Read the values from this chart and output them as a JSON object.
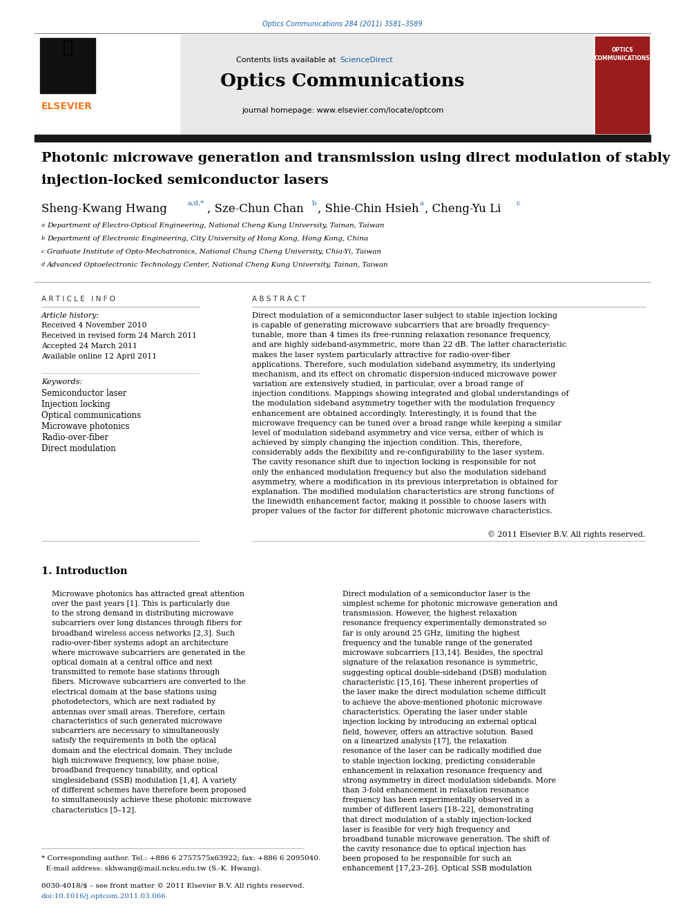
{
  "page_width": 9.92,
  "page_height": 13.23,
  "bg_color": "#ffffff",
  "journal_ref": "Optics Communications 284 (2011) 3581–3589",
  "journal_ref_color": "#1a5fa8",
  "journal_name": "Optics Communications",
  "contents_text": "Contents lists available at ",
  "sciencedirect_text": "ScienceDirect",
  "sciencedirect_color": "#1a5fa8",
  "journal_homepage": "journal homepage: www.elsevier.com/locate/optcom",
  "header_bg": "#e8e8e8",
  "title_bar_color": "#1a1a1a",
  "paper_title_line1": "Photonic microwave generation and transmission using direct modulation of stably",
  "paper_title_line2": "injection-locked semiconductor lasers",
  "article_info_header": "A R T I C L E   I N F O",
  "article_history_label": "Article history:",
  "article_history": [
    "Received 4 November 2010",
    "Received in revised form 24 March 2011",
    "Accepted 24 March 2011",
    "Available online 12 April 2011"
  ],
  "keywords_label": "Keywords:",
  "keywords": [
    "Semiconductor laser",
    "Injection locking",
    "Optical communications",
    "Microwave photonics",
    "Radio-over-fiber",
    "Direct modulation"
  ],
  "abstract_header": "A B S T R A C T",
  "abstract_text": "Direct modulation of a semiconductor laser subject to stable injection locking is capable of generating microwave subcarriers that are broadly frequency-tunable, more than 4 times its free-running relaxation resonance frequency, and are highly sideband-asymmetric, more than 22 dB. The latter characteristic makes the laser system particularly attractive for radio-over-fiber applications. Therefore, such modulation sideband asymmetry, its underlying mechanism, and its effect on chromatic dispersion-induced microwave power variation are extensively studied, in particular, over a broad range of injection conditions. Mappings showing integrated and global understandings of the modulation sideband asymmetry together with the modulation frequency enhancement are obtained accordingly. Interestingly, it is found that the microwave frequency can be tuned over a broad range while keeping a similar level of modulation sideband asymmetry and vice versa, either of which is achieved by simply changing the injection condition. This, therefore, considerably adds the flexibility and re-configurability to the laser system. The cavity resonance shift due to injection locking is responsible for not only the enhanced modulation frequency but also the modulation sideband asymmetry, where a modification in its previous interpretation is obtained for explanation. The modified modulation characteristics are strong functions of the linewidth enhancement factor, making it possible to choose lasers with proper values of the factor for different photonic microwave characteristics.",
  "copyright": "© 2011 Elsevier B.V. All rights reserved.",
  "section1_title": "1. Introduction",
  "intro_left": "Microwave photonics has attracted great attention over the past years [1]. This is particularly due to the strong demand in distributing microwave subcarriers over long distances through fibers for broadband wireless access networks [2,3]. Such radio-over-fiber systems adopt an architecture where microwave subcarriers are generated in the optical domain at a central office and next transmitted to remote base stations through fibers. Microwave subcarriers are converted to the electrical domain at the base stations using photodetectors, which are next radiated by antennas over small areas. Therefore, certain characteristics of such generated microwave subcarriers are necessary to simultaneously satisfy the requirements in both the optical domain and the electrical domain. They include high microwave frequency, low phase noise, broadband frequency tunability, and optical singlesideband (SSB) modulation [1,4]. A variety of different schemes have therefore been proposed to simultaneously achieve these photonic microwave characteristics [5–12].",
  "intro_right": "Direct modulation of a semiconductor laser is the simplest scheme for photonic microwave generation and transmission. However, the highest relaxation resonance frequency experimentally demonstrated so far is only around 25 GHz, limiting the highest frequency and the tunable range of the generated microwave subcarriers [13,14]. Besides, the spectral signature of the relaxation resonance is symmetric, suggesting optical double-sideband (DSB) modulation characteristic [15,16]. These inherent properties of the laser make the direct modulation scheme difficult to achieve the above-mentioned photonic microwave characteristics. Operating the laser under stable injection locking by introducing an external optical field, however, offers an attractive solution. Based on a linearized analysis [17], the relaxation resonance of the laser can be radically modified due to stable injection locking, predicting considerable enhancement in relaxation resonance frequency and strong asymmetry in direct modulation sidebands. More than 3-fold enhancement in relaxation resonance frequency has been experimentally observed in a number of different lasers [18–22], demonstrating that direct modulation of a stably injection-locked laser is feasible for very high frequency and broadband tunable microwave generation. The shift of the cavity resonance due to optical injection has been proposed to be responsible for such an enhancement [17,23–26]. Optical SSB modulation",
  "footnote_text": "* Corresponding author. Tel.: +886 6 2757575x63922; fax: +886 6 2095040.",
  "footnote_email": "  E-mail address: skhwang@mail.ncku.edu.tw (S.-K. Hwang).",
  "bottom_text": "0030-4018/$ – see front matter © 2011 Elsevier B.V. All rights reserved.",
  "doi_text": "doi:10.1016/j.optcom.2011.03.066",
  "link_color": "#1a5fa8",
  "elsevier_orange": "#f47920",
  "red_cover": "#9b1c1c",
  "affils": [
    [
      "a",
      "Department of Electro-Optical Engineering, National Cheng Kung University, Tainan, Taiwan"
    ],
    [
      "b",
      "Department of Electronic Engineering, City University of Hong Kong, Hong Kong, China"
    ],
    [
      "c",
      "Graduate Institute of Opto-Mechatronics, National Chung Cheng University, Chia-Yi, Taiwan"
    ],
    [
      "d",
      "Advanced Optoelectronic Technology Center, National Cheng Kung University, Tainan, Taiwan"
    ]
  ]
}
